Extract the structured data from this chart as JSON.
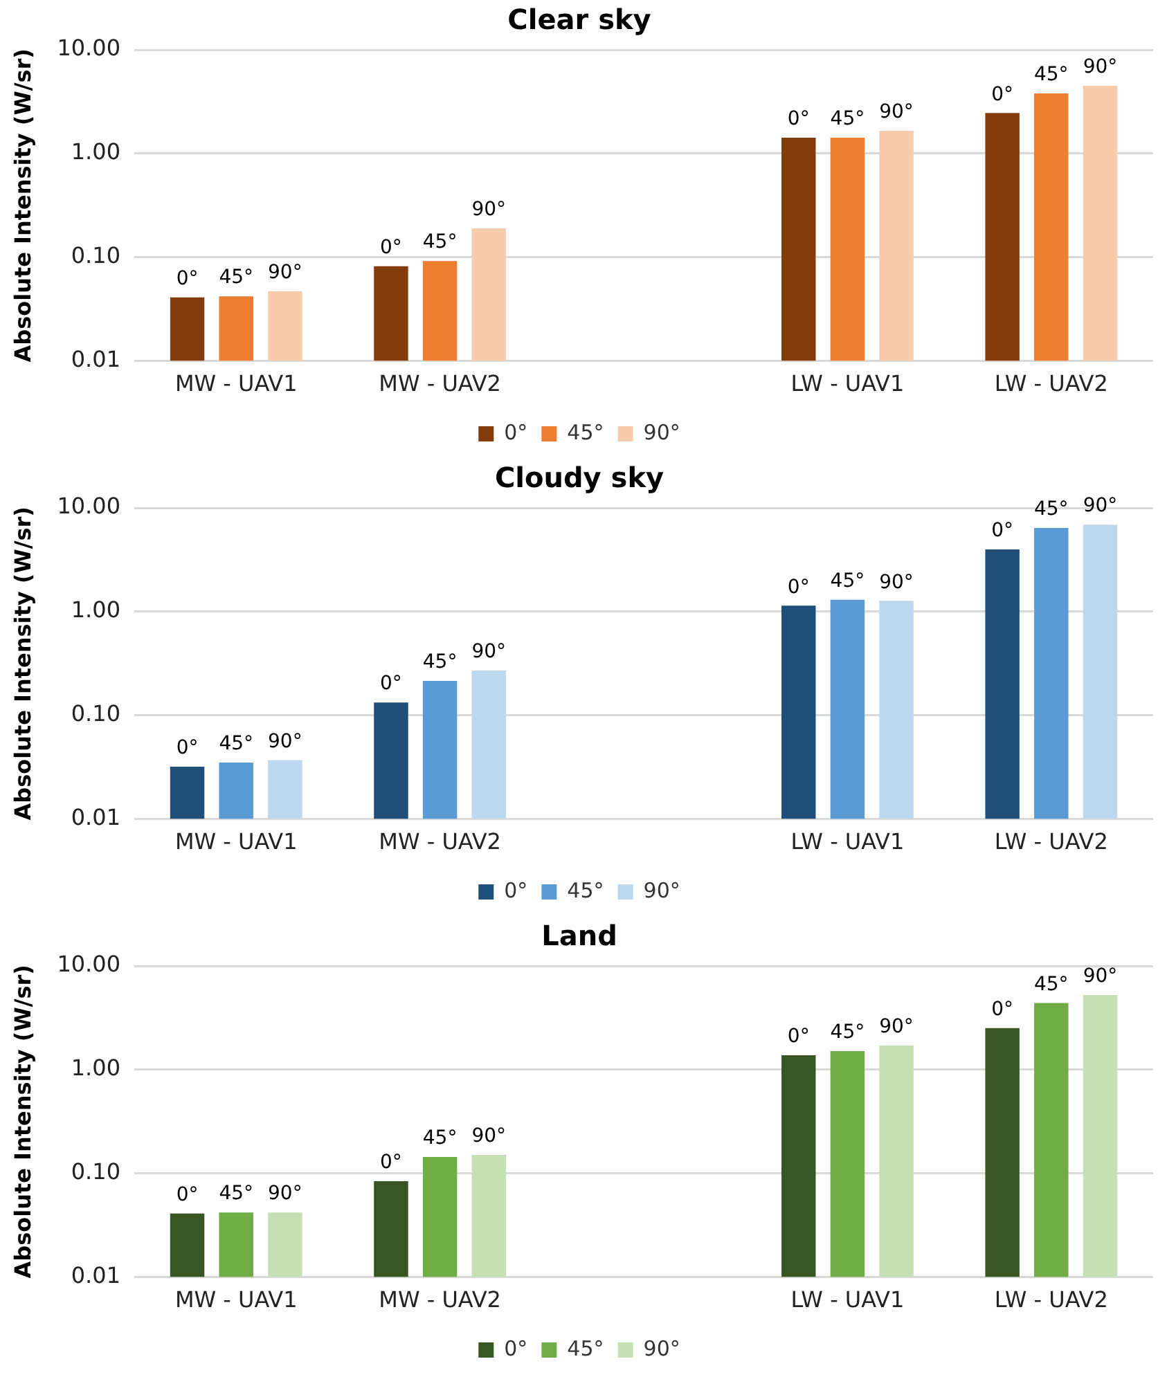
{
  "chart_data": [
    {
      "type": "bar",
      "title": "Clear sky",
      "ylabel": "Absolute Intensity (W/sr)",
      "categories": [
        "MW - UAV1",
        "MW - UAV2",
        null,
        "LW - UAV1",
        "LW - UAV2"
      ],
      "log": "y",
      "ylim": [
        0.01,
        10
      ],
      "yticks": [
        {
          "value": 0.01,
          "label": "0.01"
        },
        {
          "value": 0.1,
          "label": "0.10"
        },
        {
          "value": 1,
          "label": "1.00"
        },
        {
          "value": 10,
          "label": "10.00"
        }
      ],
      "grid": "y",
      "legend": "bottom",
      "series": [
        {
          "name": "0°",
          "color": "#843c0c",
          "values": [
            0.041,
            0.082,
            null,
            1.42,
            2.46
          ]
        },
        {
          "name": "45°",
          "color": "#ed7d31",
          "values": [
            0.042,
            0.092,
            null,
            1.42,
            3.8
          ]
        },
        {
          "name": "90°",
          "color": "#f8cbad",
          "values": [
            0.047,
            0.19,
            null,
            1.66,
            4.5
          ]
        }
      ]
    },
    {
      "type": "bar",
      "title": "Cloudy sky",
      "ylabel": "Absolute Intensity (W/sr)",
      "categories": [
        "MW - UAV1",
        "MW - UAV2",
        null,
        "LW - UAV1",
        "LW - UAV2"
      ],
      "log": "y",
      "ylim": [
        0.01,
        10
      ],
      "yticks": [
        {
          "value": 0.01,
          "label": "0.01"
        },
        {
          "value": 0.1,
          "label": "0.10"
        },
        {
          "value": 1,
          "label": "1.00"
        },
        {
          "value": 10,
          "label": "10.00"
        }
      ],
      "grid": "y",
      "legend": "bottom",
      "series": [
        {
          "name": "0°",
          "color": "#1f4e79",
          "values": [
            0.032,
            0.133,
            null,
            1.14,
            3.98
          ]
        },
        {
          "name": "45°",
          "color": "#5b9bd5",
          "values": [
            0.035,
            0.215,
            null,
            1.3,
            6.4
          ]
        },
        {
          "name": "90°",
          "color": "#bdd7ee",
          "values": [
            0.037,
            0.27,
            null,
            1.27,
            6.9
          ]
        }
      ]
    },
    {
      "type": "bar",
      "title": "Land",
      "ylabel": "Absolute Intensity (W/sr)",
      "categories": [
        "MW - UAV1",
        "MW - UAV2",
        null,
        "LW - UAV1",
        "LW - UAV2"
      ],
      "log": "y",
      "ylim": [
        0.01,
        10
      ],
      "yticks": [
        {
          "value": 0.01,
          "label": "0.01"
        },
        {
          "value": 0.1,
          "label": "0.10"
        },
        {
          "value": 1,
          "label": "1.00"
        },
        {
          "value": 10,
          "label": "10.00"
        }
      ],
      "grid": "y",
      "legend": "bottom",
      "series": [
        {
          "name": "0°",
          "color": "#375623",
          "values": [
            0.041,
            0.084,
            null,
            1.38,
            2.52
          ]
        },
        {
          "name": "45°",
          "color": "#70ad47",
          "values": [
            0.042,
            0.144,
            null,
            1.51,
            4.4
          ]
        },
        {
          "name": "90°",
          "color": "#c5e0b4",
          "values": [
            0.042,
            0.151,
            null,
            1.71,
            5.25
          ]
        }
      ]
    }
  ]
}
